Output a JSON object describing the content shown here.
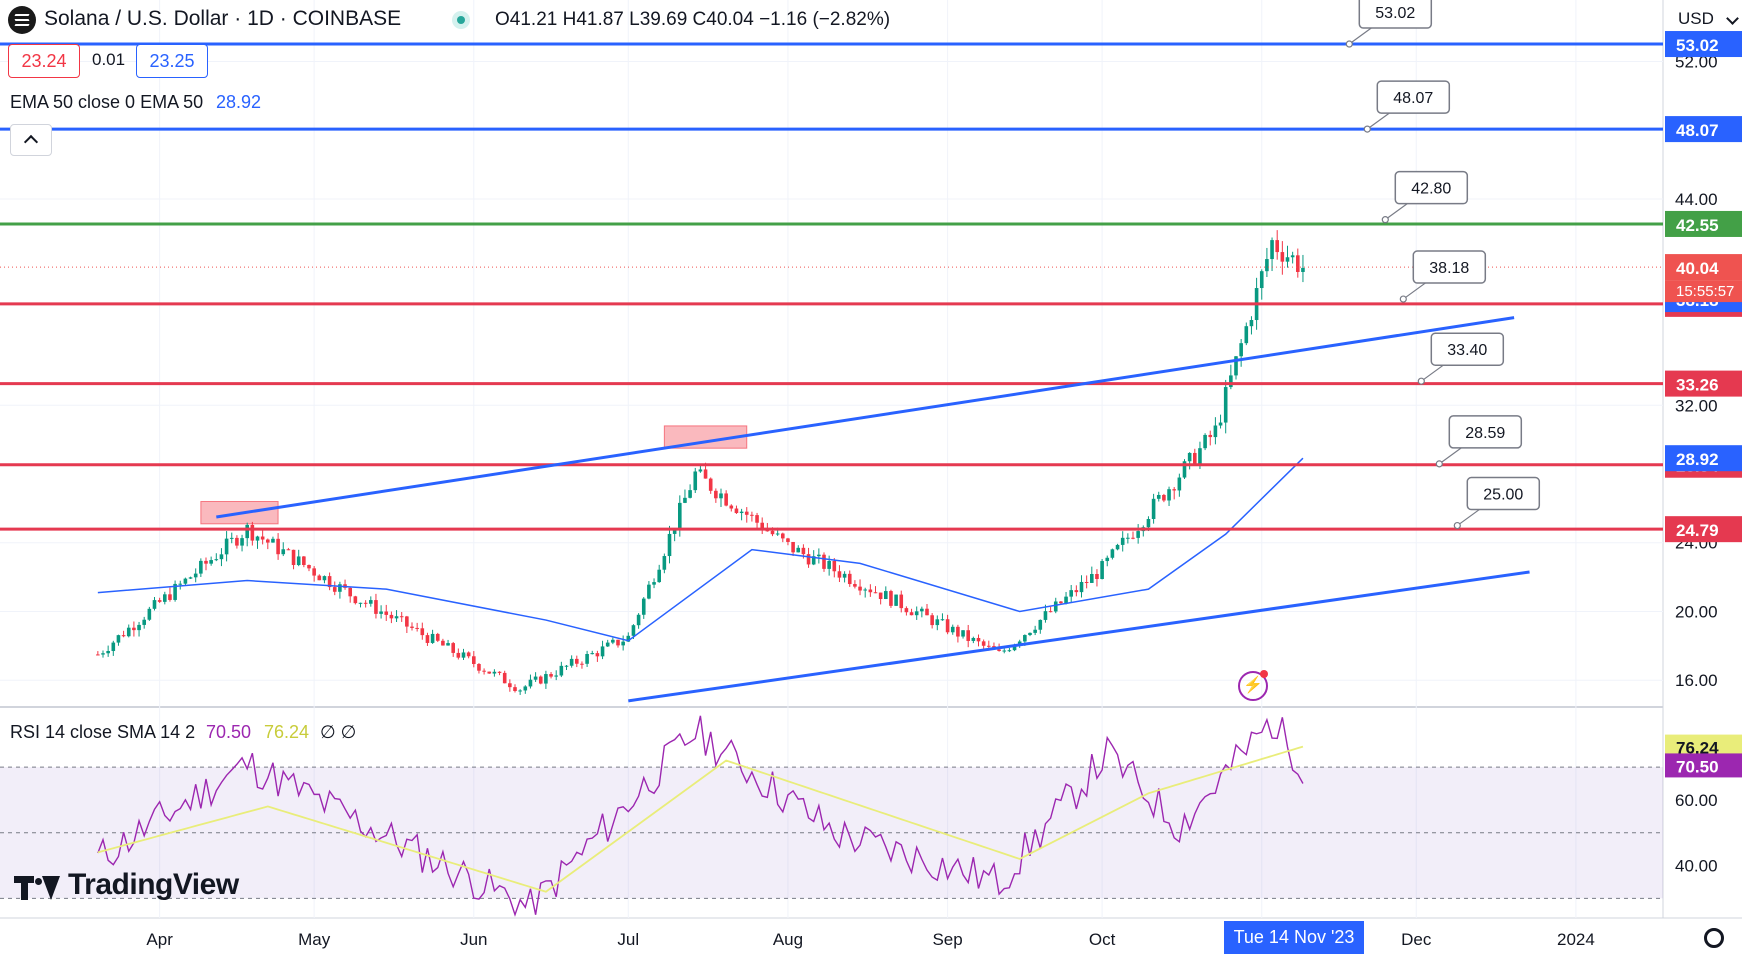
{
  "header": {
    "symbol_icon": "solana-logo-icon",
    "symbol_title": "Solana / U.S. Dollar · 1D · COINBASE",
    "status_dot_color": "#26a69a",
    "ohlc": "O41.21  H41.87  L39.69  C40.04  −1.16  (−2.82%)",
    "bid": "23.24",
    "spread": "0.01",
    "ask": "23.25",
    "currency": "USD"
  },
  "indicators": {
    "ema_label": "EMA 50 close 0 EMA 50",
    "ema_value": "28.92",
    "collapse_icon": "chevron-up-icon",
    "rsi_label": "RSI 14 close SMA 14 2",
    "rsi_value": "70.50",
    "rsi_sma_value": "76.24",
    "rsi_extra": "∅ ∅"
  },
  "footer": {
    "brand": "TradingView",
    "brand_icon": "tradingview-logo-icon",
    "crosshair_date": "Tue 14 Nov '23",
    "settings_icon": "gear-icon",
    "alert_icon": "lightning-icon"
  },
  "chart_data": [
    {
      "type": "candlestick",
      "title": "Solana / U.S. Dollar · 1D · COINBASE",
      "ylim": [
        14.5,
        55
      ],
      "y_ticks": [
        "16.00",
        "20.00",
        "24.00",
        "32.00",
        "44.00",
        "52.00"
      ],
      "x_ticks": [
        "Apr",
        "May",
        "Jun",
        "Jul",
        "Aug",
        "Sep",
        "Oct",
        "N",
        "Dec",
        "2024"
      ],
      "last_price": "40.04",
      "countdown": "15:55:57",
      "candle_samples": [
        {
          "x": "2023-03-20",
          "close": 17.5
        },
        {
          "x": "2023-04-18",
          "close": 24.8
        },
        {
          "x": "2023-05-08",
          "close": 21.0
        },
        {
          "x": "2023-06-10",
          "close": 15.5
        },
        {
          "x": "2023-07-01",
          "close": 18.5
        },
        {
          "x": "2023-07-14",
          "close": 28.0
        },
        {
          "x": "2023-08-01",
          "close": 23.8
        },
        {
          "x": "2023-09-11",
          "close": 17.5
        },
        {
          "x": "2023-10-01",
          "close": 22.5
        },
        {
          "x": "2023-10-23",
          "close": 30.5
        },
        {
          "x": "2023-11-03",
          "close": 41.5
        },
        {
          "x": "2023-11-09",
          "close": 40.04
        }
      ],
      "ema_50_samples": [
        {
          "x": "2023-03-20",
          "value": 21.1
        },
        {
          "x": "2023-04-18",
          "value": 21.8
        },
        {
          "x": "2023-05-15",
          "value": 21.3
        },
        {
          "x": "2023-06-15",
          "value": 19.5
        },
        {
          "x": "2023-07-01",
          "value": 18.3
        },
        {
          "x": "2023-07-25",
          "value": 23.6
        },
        {
          "x": "2023-08-15",
          "value": 22.8
        },
        {
          "x": "2023-09-15",
          "value": 20.0
        },
        {
          "x": "2023-10-10",
          "value": 21.3
        },
        {
          "x": "2023-10-25",
          "value": 24.5
        },
        {
          "x": "2023-11-09",
          "value": 28.92
        }
      ],
      "horizontal_levels": [
        {
          "value": 53.02,
          "label": "53.02",
          "color": "#2962ff"
        },
        {
          "value": 48.07,
          "label": "48.07",
          "color": "#2962ff"
        },
        {
          "value": 42.55,
          "label": "42.55",
          "color": "#43a047"
        },
        {
          "value": 37.9,
          "label": "37.90",
          "color": "#e53950"
        },
        {
          "value": 33.26,
          "label": "33.26",
          "color": "#e53950"
        },
        {
          "value": 28.54,
          "label": "28.54",
          "color": "#e53950"
        },
        {
          "value": 24.79,
          "label": "24.79",
          "color": "#e53950"
        }
      ],
      "axis_tags": [
        {
          "value": 38.18,
          "label": "38.18",
          "color": "#2962ff"
        },
        {
          "value": 28.92,
          "label": "28.92",
          "color": "#2962ff"
        },
        {
          "value": 40.04,
          "label": "40.04",
          "color": "#ef5350"
        }
      ],
      "trend_lines": [
        {
          "from": {
            "x": "2023-04-12",
            "y": 25.5
          },
          "to": {
            "x": "2023-12-20",
            "y": 37.1
          },
          "color": "#2962ff"
        },
        {
          "from": {
            "x": "2023-07-01",
            "y": 14.8
          },
          "to": {
            "x": "2023-12-23",
            "y": 22.3
          },
          "color": "#2962ff"
        }
      ],
      "callouts": [
        "53.02",
        "48.07",
        "42.80",
        "38.18",
        "33.40",
        "28.59",
        "25.00"
      ],
      "highlight_zones": [
        {
          "x0": "2023-04-09",
          "x1": "2023-04-24",
          "y0": 25.1,
          "y1": 26.4
        },
        {
          "x0": "2023-07-08",
          "x1": "2023-07-24",
          "y0": 29.5,
          "y1": 30.8
        }
      ]
    },
    {
      "type": "line",
      "title": "RSI 14 close SMA 14 2",
      "ylim": [
        24,
        88
      ],
      "y_ticks": [
        "40.00",
        "60.00"
      ],
      "bands": [
        30,
        70
      ],
      "series": [
        {
          "name": "RSI",
          "color": "#9c27b0",
          "samples": [
            {
              "x": "2023-03-20",
              "value": 42
            },
            {
              "x": "2023-04-18",
              "value": 71
            },
            {
              "x": "2023-05-20",
              "value": 45
            },
            {
              "x": "2023-06-12",
              "value": 27
            },
            {
              "x": "2023-07-14",
              "value": 81
            },
            {
              "x": "2023-08-10",
              "value": 50
            },
            {
              "x": "2023-09-11",
              "value": 35
            },
            {
              "x": "2023-10-02",
              "value": 74
            },
            {
              "x": "2023-10-16",
              "value": 52
            },
            {
              "x": "2023-11-03",
              "value": 84
            },
            {
              "x": "2023-11-09",
              "value": 70.5
            }
          ]
        },
        {
          "name": "SMA",
          "color": "#e9ed7a",
          "samples": [
            {
              "x": "2023-03-20",
              "value": 44
            },
            {
              "x": "2023-04-22",
              "value": 58
            },
            {
              "x": "2023-06-15",
              "value": 32
            },
            {
              "x": "2023-07-20",
              "value": 72
            },
            {
              "x": "2023-09-15",
              "value": 42
            },
            {
              "x": "2023-10-10",
              "value": 62
            },
            {
              "x": "2023-11-09",
              "value": 76.24
            }
          ]
        }
      ]
    }
  ]
}
